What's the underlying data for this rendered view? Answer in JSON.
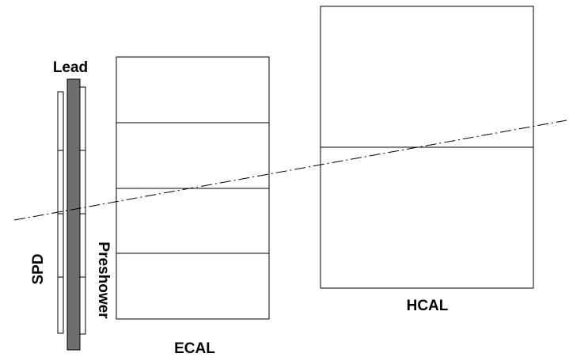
{
  "labels": {
    "lead": "Lead",
    "spd": "SPD",
    "preshower": "Preshower",
    "ecal": "ECAL",
    "hcal": "HCAL"
  },
  "colors": {
    "line": "#000000",
    "lead_fill": "#6e6e6e",
    "background": "#ffffff"
  },
  "track_style": "dash-dot"
}
